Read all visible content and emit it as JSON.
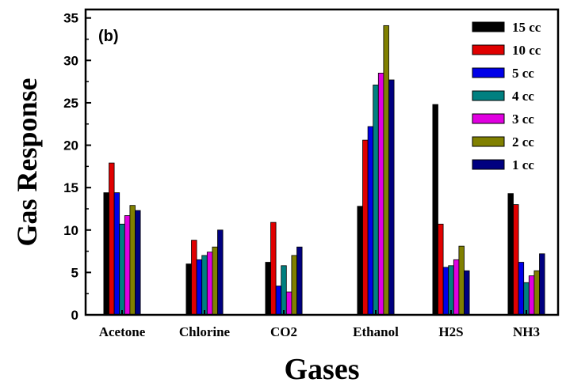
{
  "chart_data": {
    "type": "bar",
    "panel_label": "(b)",
    "xlabel": "Gases",
    "ylabel": "Gas Response",
    "ylim": [
      0,
      36
    ],
    "yticks": [
      0,
      5,
      10,
      15,
      20,
      25,
      30,
      35
    ],
    "grid": false,
    "legend_position": "top-right",
    "categories": [
      "Acetone",
      "Chlorine",
      "CO2",
      "Ethanol",
      "H2S",
      "NH3"
    ],
    "series": [
      {
        "name": "15 cc",
        "color": "#000000",
        "values": [
          14.4,
          6.0,
          6.2,
          12.8,
          24.8,
          14.3
        ]
      },
      {
        "name": "10 cc",
        "color": "#e00000",
        "values": [
          17.9,
          8.8,
          10.9,
          20.6,
          10.7,
          13.0
        ]
      },
      {
        "name": "5 cc",
        "color": "#0000e8",
        "values": [
          14.4,
          6.5,
          3.4,
          22.2,
          5.6,
          6.2
        ]
      },
      {
        "name": "4 cc",
        "color": "#008080",
        "values": [
          10.7,
          7.0,
          5.8,
          27.1,
          5.8,
          3.8
        ]
      },
      {
        "name": "3 cc",
        "color": "#e000e0",
        "values": [
          11.7,
          7.4,
          2.7,
          28.5,
          6.5,
          4.6
        ]
      },
      {
        "name": "2 cc",
        "color": "#808000",
        "values": [
          12.9,
          8.0,
          7.0,
          34.1,
          8.1,
          5.2
        ]
      },
      {
        "name": "1 cc",
        "color": "#000080",
        "values": [
          12.3,
          10.0,
          8.0,
          27.7,
          5.2,
          7.2
        ]
      }
    ]
  }
}
